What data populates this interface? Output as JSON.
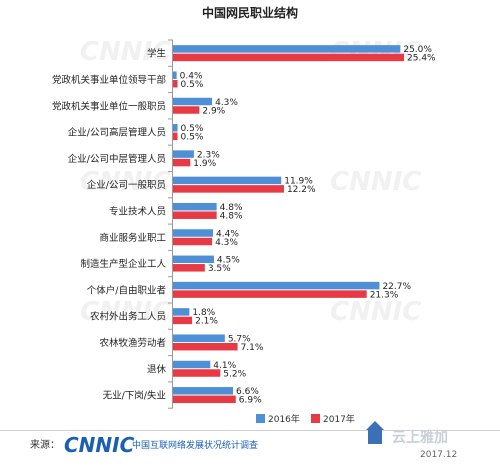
{
  "chart_data": {
    "type": "bar",
    "orientation": "horizontal",
    "title": "中国网民职业结构",
    "categories": [
      "学生",
      "党政机关事业单位领导干部",
      "党政机关事业单位一般职员",
      "企业/公司高层管理人员",
      "企业/公司中层管理人员",
      "企业/公司一般职员",
      "专业技术人员",
      "商业服务业职工",
      "制造生产型企业工人",
      "个体户/自由职业者",
      "农村外出务工人员",
      "农林牧渔劳动者",
      "退休",
      "无业/下岗/失业"
    ],
    "series": [
      {
        "name": "2016年",
        "color": "#4f8fd6",
        "values": [
          25.0,
          0.4,
          4.3,
          0.5,
          2.3,
          11.9,
          4.8,
          4.4,
          4.5,
          22.7,
          1.8,
          5.7,
          4.1,
          6.6
        ],
        "labels": [
          "25.0%",
          "0.4%",
          "4.3%",
          "0.5%",
          "2.3%",
          "11.9%",
          "4.8%",
          "4.4%",
          "4.5%",
          "22.7%",
          "1.8%",
          "5.7%",
          "4.1%",
          "6.6%"
        ]
      },
      {
        "name": "2017年",
        "color": "#e83a45",
        "values": [
          25.4,
          0.5,
          2.9,
          0.5,
          1.9,
          12.2,
          4.8,
          4.3,
          3.5,
          21.3,
          2.1,
          7.1,
          5.2,
          6.9
        ],
        "labels": [
          "25.4%",
          "0.5%",
          "2.9%",
          "0.5%",
          "1.9%",
          "12.2%",
          "4.8%",
          "4.3%",
          "3.5%",
          "21.3%",
          "2.1%",
          "7.1%",
          "5.2%",
          "6.9%"
        ]
      }
    ],
    "xlim": [
      0,
      28
    ],
    "legend": "bottom-right",
    "grid": false
  },
  "watermark": "CNNIC",
  "footer": {
    "source_label": "来源：",
    "logo_text": "CNNIC",
    "org_text": "中国互联网络发展状况统计调查",
    "date": "2017.12",
    "brand_text": "云上雅加"
  }
}
